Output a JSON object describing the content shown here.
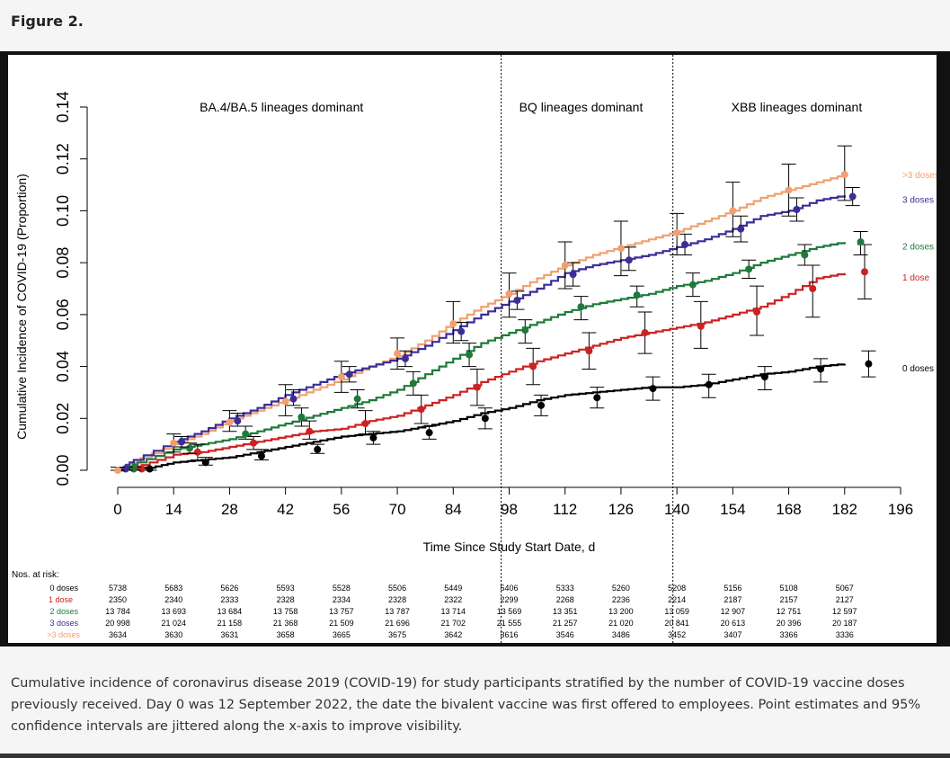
{
  "figure_title": "Figure 2.",
  "caption": "Cumulative incidence of coronavirus disease 2019 (COVID-19) for study participants stratified by the number of COVID-19 vaccine doses previously received. Day 0 was 12 September 2022, the date the bivalent vaccine was first offered to employees. Point estimates and 95% confidence intervals are jittered along the x-axis to improve visibility.",
  "colors": {
    "0 doses": "#000000",
    "1 dose": "#cc2222",
    "2 doses": "#1e7a3a",
    "3 doses": "#3a2e96",
    ">3 doses": "#f0a070"
  },
  "chart_data": {
    "type": "line",
    "subtype": "step cumulative incidence",
    "xlabel": "Time Since Study Start Date, d",
    "ylabel": "Cumulative Incidence of COVID-19 (Proportion)",
    "xlim": [
      0,
      196
    ],
    "ylim": [
      0,
      0.14
    ],
    "x_ticks": [
      0,
      14,
      28,
      42,
      56,
      70,
      84,
      98,
      112,
      126,
      140,
      154,
      168,
      182,
      196
    ],
    "y_ticks": [
      "0.00",
      "0.02",
      "0.04",
      "0.06",
      "0.08",
      "0.10",
      "0.12",
      "0.14"
    ],
    "periods": [
      {
        "label": "BA.4/BA.5 lineages dominant",
        "center": 41
      },
      {
        "label": "BQ lineages dominant",
        "center": 116
      },
      {
        "label": "XBB lineages dominant",
        "center": 170
      }
    ],
    "vlines": [
      96,
      139
    ],
    "series": [
      {
        "name": "0 doses",
        "curve_x": [
          0,
          8,
          14,
          21,
          28,
          35,
          42,
          49,
          56,
          63,
          70,
          77,
          84,
          91,
          98,
          105,
          112,
          119,
          126,
          133,
          140,
          147,
          154,
          161,
          168,
          175,
          182
        ],
        "curve_y": [
          0,
          0.001,
          0.003,
          0.004,
          0.005,
          0.007,
          0.009,
          0.011,
          0.013,
          0.014,
          0.015,
          0.017,
          0.019,
          0.022,
          0.024,
          0.027,
          0.029,
          0.03,
          0.031,
          0.032,
          0.032,
          0.033,
          0.035,
          0.037,
          0.038,
          0.04,
          0.041
        ],
        "point_x": [
          8,
          22,
          36,
          50,
          64,
          78,
          92,
          106,
          120,
          134,
          148,
          162,
          176
        ],
        "point_y": [
          0.0005,
          0.003,
          0.0055,
          0.008,
          0.0125,
          0.0145,
          0.02,
          0.025,
          0.028,
          0.0315,
          0.033,
          0.036,
          0.039
        ],
        "ci": [
          [
            0,
            0.0012
          ],
          [
            0.002,
            0.005
          ],
          [
            0.004,
            0.008
          ],
          [
            0.0065,
            0.01
          ],
          [
            0.01,
            0.015
          ],
          [
            0.012,
            0.017
          ],
          [
            0.016,
            0.024
          ],
          [
            0.021,
            0.029
          ],
          [
            0.024,
            0.032
          ],
          [
            0.027,
            0.036
          ],
          [
            0.028,
            0.037
          ],
          [
            0.031,
            0.04
          ],
          [
            0.034,
            0.043
          ]
        ],
        "end_point": {
          "x": 188,
          "y": 0.041,
          "ci": [
            0.036,
            0.046
          ]
        }
      },
      {
        "name": "1 dose",
        "curve_x": [
          0,
          6,
          14,
          21,
          28,
          35,
          42,
          49,
          56,
          63,
          70,
          77,
          84,
          91,
          98,
          105,
          112,
          119,
          126,
          133,
          140,
          147,
          154,
          161,
          168,
          175,
          182
        ],
        "curve_y": [
          0,
          0.002,
          0.006,
          0.007,
          0.009,
          0.011,
          0.013,
          0.015,
          0.016,
          0.019,
          0.021,
          0.025,
          0.029,
          0.034,
          0.038,
          0.042,
          0.045,
          0.048,
          0.051,
          0.053,
          0.055,
          0.057,
          0.06,
          0.063,
          0.068,
          0.074,
          0.076
        ],
        "point_x": [
          6,
          20,
          34,
          48,
          62,
          76,
          90,
          104,
          118,
          132,
          146,
          160,
          174
        ],
        "point_y": [
          0.0005,
          0.007,
          0.0105,
          0.015,
          0.018,
          0.0235,
          0.032,
          0.04,
          0.046,
          0.053,
          0.0555,
          0.061,
          0.07
        ],
        "ci": [
          [
            0,
            0.0012
          ],
          [
            0.004,
            0.01
          ],
          [
            0.008,
            0.013
          ],
          [
            0.012,
            0.019
          ],
          [
            0.014,
            0.023
          ],
          [
            0.018,
            0.029
          ],
          [
            0.025,
            0.039
          ],
          [
            0.033,
            0.047
          ],
          [
            0.039,
            0.053
          ],
          [
            0.045,
            0.061
          ],
          [
            0.047,
            0.065
          ],
          [
            0.052,
            0.071
          ],
          [
            0.059,
            0.079
          ]
        ],
        "end_point": {
          "x": 187,
          "y": 0.0765,
          "ci": [
            0.066,
            0.087
          ]
        }
      },
      {
        "name": "2 doses",
        "curve_x": [
          0,
          5,
          14,
          21,
          28,
          35,
          42,
          49,
          56,
          63,
          70,
          77,
          84,
          91,
          98,
          105,
          112,
          119,
          126,
          133,
          140,
          147,
          154,
          161,
          168,
          175,
          182
        ],
        "curve_y": [
          0,
          0.003,
          0.008,
          0.01,
          0.012,
          0.015,
          0.018,
          0.021,
          0.024,
          0.027,
          0.031,
          0.037,
          0.043,
          0.049,
          0.053,
          0.057,
          0.061,
          0.064,
          0.066,
          0.068,
          0.071,
          0.073,
          0.076,
          0.08,
          0.083,
          0.086,
          0.088
        ],
        "point_x": [
          4,
          18,
          32,
          46,
          60,
          74,
          88,
          102,
          116,
          130,
          144,
          158,
          172
        ],
        "point_y": [
          0.0005,
          0.0085,
          0.014,
          0.0205,
          0.0275,
          0.0335,
          0.0445,
          0.054,
          0.063,
          0.0675,
          0.0715,
          0.0775,
          0.083
        ],
        "ci": [
          [
            0,
            0.0012
          ],
          [
            0.0065,
            0.0105
          ],
          [
            0.012,
            0.017
          ],
          [
            0.017,
            0.024
          ],
          [
            0.024,
            0.031
          ],
          [
            0.029,
            0.038
          ],
          [
            0.04,
            0.049
          ],
          [
            0.049,
            0.058
          ],
          [
            0.058,
            0.067
          ],
          [
            0.063,
            0.071
          ],
          [
            0.067,
            0.076
          ],
          [
            0.074,
            0.081
          ],
          [
            0.079,
            0.087
          ]
        ],
        "end_point": {
          "x": 186,
          "y": 0.088,
          "ci": [
            0.083,
            0.092
          ]
        }
      },
      {
        "name": "3 doses",
        "curve_x": [
          0,
          4,
          14,
          21,
          28,
          35,
          42,
          49,
          56,
          63,
          70,
          77,
          84,
          91,
          98,
          105,
          112,
          119,
          126,
          133,
          140,
          147,
          154,
          161,
          168,
          175,
          182
        ],
        "curve_y": [
          0,
          0.004,
          0.011,
          0.015,
          0.02,
          0.024,
          0.029,
          0.033,
          0.037,
          0.04,
          0.043,
          0.048,
          0.054,
          0.06,
          0.065,
          0.07,
          0.076,
          0.079,
          0.081,
          0.083,
          0.086,
          0.089,
          0.093,
          0.098,
          0.1,
          0.104,
          0.106
        ],
        "point_x": [
          2,
          16,
          30,
          44,
          58,
          72,
          86,
          100,
          114,
          128,
          142,
          156,
          170
        ],
        "point_y": [
          0.0005,
          0.011,
          0.019,
          0.0275,
          0.037,
          0.043,
          0.0535,
          0.0655,
          0.0755,
          0.081,
          0.087,
          0.093,
          0.1005
        ],
        "ci": [
          [
            0,
            0.0012
          ],
          [
            0.009,
            0.013
          ],
          [
            0.017,
            0.022
          ],
          [
            0.025,
            0.031
          ],
          [
            0.034,
            0.04
          ],
          [
            0.04,
            0.046
          ],
          [
            0.05,
            0.057
          ],
          [
            0.062,
            0.069
          ],
          [
            0.071,
            0.08
          ],
          [
            0.077,
            0.086
          ],
          [
            0.083,
            0.091
          ],
          [
            0.088,
            0.098
          ],
          [
            0.096,
            0.105
          ]
        ],
        "end_point": {
          "x": 184,
          "y": 0.1055,
          "ci": [
            0.102,
            0.109
          ]
        }
      },
      {
        "name": ">3 doses",
        "curve_x": [
          0,
          3,
          14,
          21,
          28,
          35,
          42,
          49,
          56,
          63,
          70,
          77,
          84,
          91,
          98,
          105,
          112,
          119,
          126,
          133,
          140,
          147,
          154,
          161,
          168,
          175,
          182
        ],
        "curve_y": [
          0,
          0.003,
          0.01,
          0.014,
          0.019,
          0.023,
          0.027,
          0.031,
          0.035,
          0.04,
          0.044,
          0.05,
          0.057,
          0.063,
          0.068,
          0.074,
          0.079,
          0.083,
          0.086,
          0.089,
          0.092,
          0.096,
          0.1,
          0.105,
          0.108,
          0.111,
          0.114
        ],
        "point_x": [
          0,
          14,
          28,
          42,
          56,
          70,
          84,
          98,
          112,
          126,
          140,
          154,
          168,
          182
        ],
        "point_y": [
          0,
          0.0105,
          0.0185,
          0.0265,
          0.036,
          0.045,
          0.0565,
          0.068,
          0.079,
          0.0855,
          0.0915,
          0.1,
          0.108,
          0.114
        ],
        "ci": [
          [
            0,
            0.0012
          ],
          [
            0.007,
            0.014
          ],
          [
            0.015,
            0.023
          ],
          [
            0.021,
            0.033
          ],
          [
            0.03,
            0.042
          ],
          [
            0.039,
            0.051
          ],
          [
            0.049,
            0.065
          ],
          [
            0.059,
            0.076
          ],
          [
            0.07,
            0.088
          ],
          [
            0.075,
            0.096
          ],
          [
            0.083,
            0.099
          ],
          [
            0.09,
            0.111
          ],
          [
            0.098,
            0.118
          ],
          [
            0.104,
            0.125
          ]
        ],
        "end_point": null
      }
    ],
    "risk_table": {
      "title": "Nos. at risk:",
      "days": [
        0,
        14,
        28,
        42,
        56,
        70,
        84,
        98,
        112,
        126,
        140,
        154,
        168,
        182
      ],
      "rows": [
        {
          "label": "0 doses",
          "values": [
            "5738",
            "5683",
            "5626",
            "5593",
            "5528",
            "5506",
            "5449",
            "5406",
            "5333",
            "5260",
            "5208",
            "5156",
            "5108",
            "5067"
          ]
        },
        {
          "label": "1 dose",
          "values": [
            "2350",
            "2340",
            "2333",
            "2328",
            "2334",
            "2328",
            "2322",
            "2299",
            "2268",
            "2236",
            "2214",
            "2187",
            "2157",
            "2127"
          ]
        },
        {
          "label": "2 doses",
          "values": [
            "13 784",
            "13 693",
            "13 684",
            "13 758",
            "13 757",
            "13 787",
            "13 714",
            "13 569",
            "13 351",
            "13 200",
            "13 059",
            "12 907",
            "12 751",
            "12 597"
          ]
        },
        {
          "label": "3 doses",
          "values": [
            "20 998",
            "21 024",
            "21 158",
            "21 368",
            "21 509",
            "21 696",
            "21 702",
            "21 555",
            "21 257",
            "21 020",
            "20 841",
            "20 613",
            "20 396",
            "20 187"
          ]
        },
        {
          "label": ">3 doses",
          "values": [
            "3634",
            "3630",
            "3631",
            "3658",
            "3665",
            "3675",
            "3642",
            "3616",
            "3546",
            "3486",
            "3452",
            "3407",
            "3366",
            "3336"
          ]
        }
      ]
    }
  }
}
